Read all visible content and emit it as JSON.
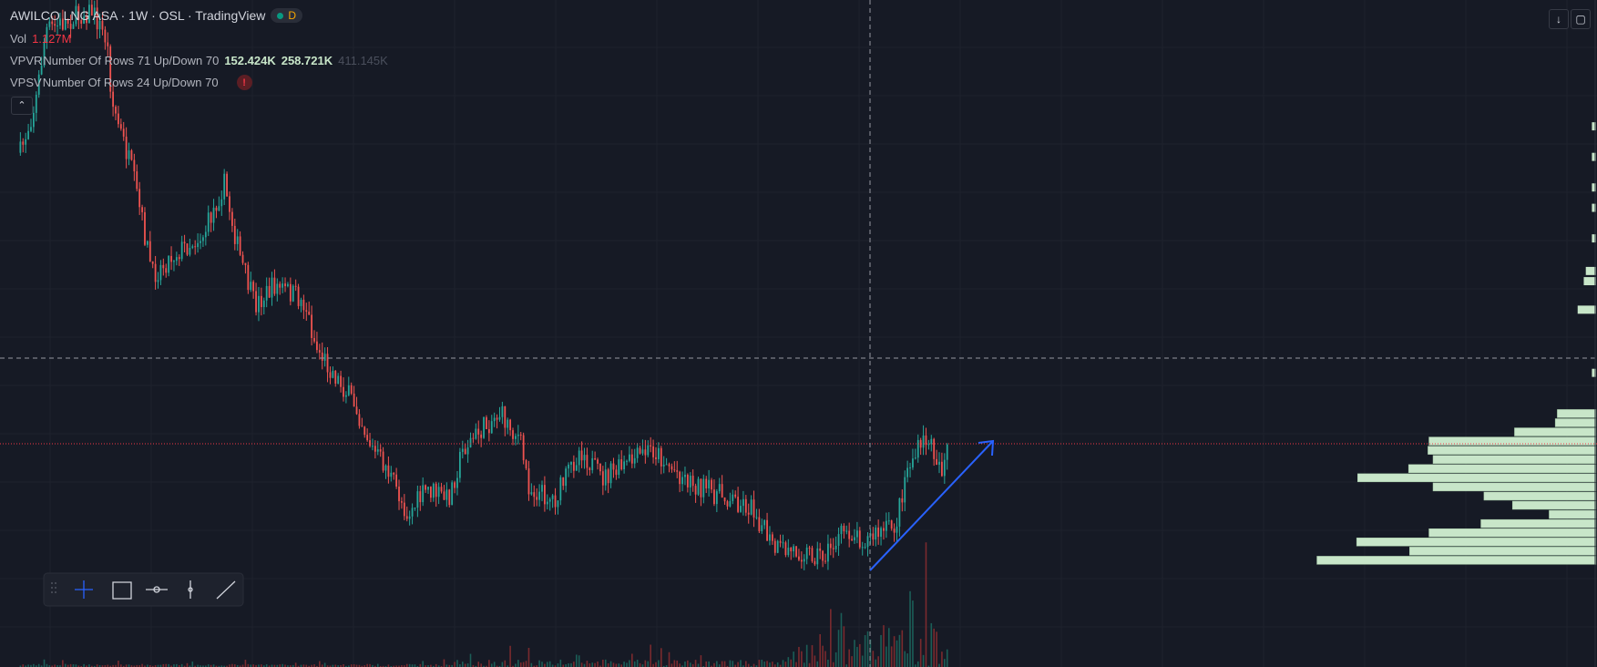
{
  "legend": {
    "title": "AWILCO LNG ASA · 1W · OSL · TradingView",
    "badge": "D"
  },
  "indicators": [
    {
      "name": "Vol",
      "values": [
        "1.127M"
      ]
    },
    {
      "name": "VPVR",
      "settings": "Number Of Rows 71 Up/Down 70",
      "values": [
        "152.424K",
        "258.721K",
        "411.145K"
      ]
    },
    {
      "name": "VPSV",
      "settings": "Number Of Rows 24 Up/Down 70",
      "alert": "!"
    }
  ]
}
